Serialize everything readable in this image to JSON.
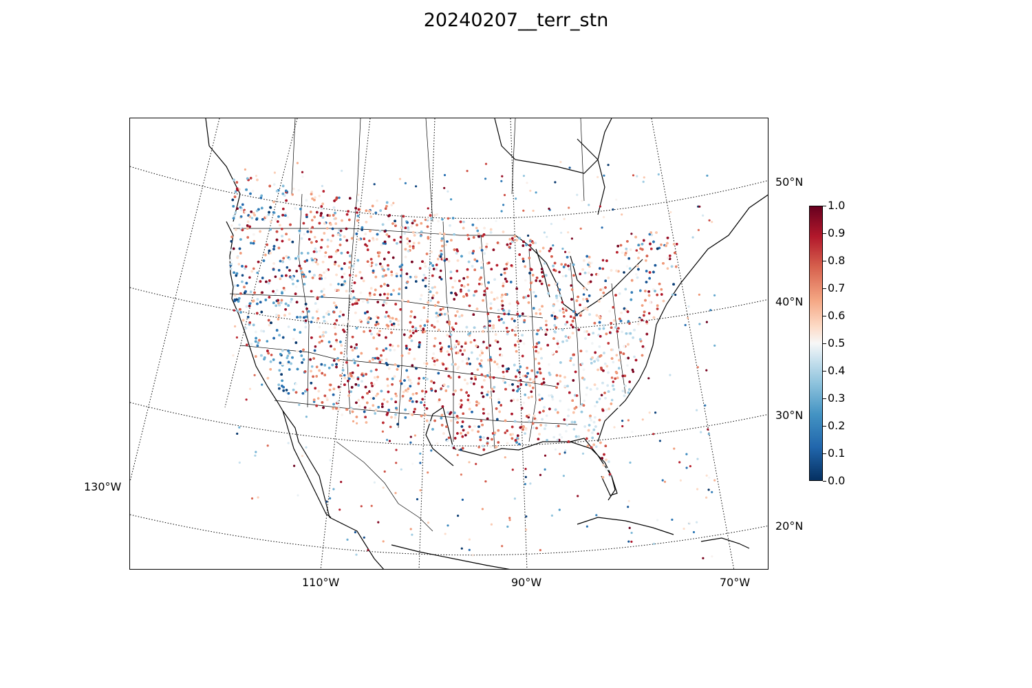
{
  "title": "20240207__terr_stn",
  "map": {
    "projection": "lambert-conformal",
    "lat_labels": [
      "50°N",
      "40°N",
      "30°N",
      "20°N"
    ],
    "lon_labels": [
      "110°W",
      "90°W",
      "70°W"
    ],
    "left_label": "130°W",
    "boundary_color": "#000000",
    "graticule_style": "dotted"
  },
  "colorbar": {
    "colormap": "RdBu_r",
    "ticks": [
      "1.0",
      "0.9",
      "0.8",
      "0.7",
      "0.6",
      "0.5",
      "0.4",
      "0.3",
      "0.2",
      "0.1",
      "0.0"
    ],
    "range": [
      0.0,
      1.0
    ],
    "stops": [
      "#053061",
      "#2166ac",
      "#4393c3",
      "#92c5de",
      "#d1e5f0",
      "#f7f7f7",
      "#fddbc7",
      "#f4a582",
      "#d6604d",
      "#b2182b",
      "#67001f"
    ]
  },
  "chart_data": {
    "type": "scatter",
    "title": "20240207__terr_stn",
    "description_value_range": [
      0.0,
      1.0
    ],
    "point_count_approx": 9000,
    "x_range_deg": [
      -130,
      -65
    ],
    "y_range_deg": [
      18,
      52
    ]
  }
}
